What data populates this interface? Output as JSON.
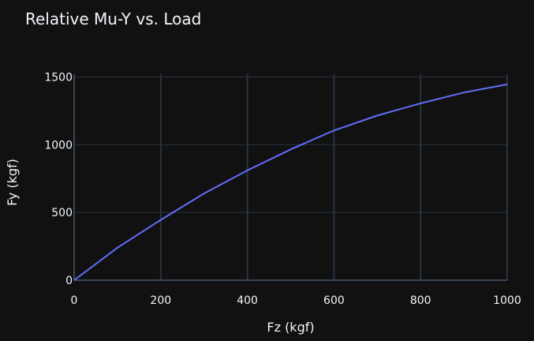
{
  "chart_data": {
    "type": "line",
    "title": "Relative Mu-Y vs. Load",
    "xlabel": "Fz (kgf)",
    "ylabel": "Fy (kgf)",
    "xlim": [
      0,
      1000
    ],
    "ylim": [
      0,
      1520
    ],
    "xticks": [
      0,
      200,
      400,
      600,
      800,
      1000
    ],
    "yticks": [
      0,
      500,
      1000,
      1500
    ],
    "xtick_labels": [
      "0",
      "200",
      "400",
      "600",
      "800",
      "1000"
    ],
    "ytick_labels": [
      "0",
      "500",
      "1000",
      "1500"
    ],
    "grid": true,
    "series": [
      {
        "color": "#636efa",
        "x": [
          0,
          100,
          200,
          300,
          400,
          500,
          600,
          700,
          800,
          900,
          1000
        ],
        "y": [
          0,
          240,
          445,
          640,
          810,
          965,
          1105,
          1215,
          1305,
          1385,
          1445
        ]
      }
    ]
  },
  "colors": {
    "background": "#111111",
    "grid": "#283442",
    "zeroline": "#3a4656",
    "text": "#f2f5fa"
  }
}
